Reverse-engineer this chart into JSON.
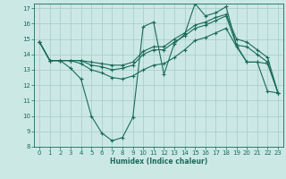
{
  "xlabel": "Humidex (Indice chaleur)",
  "ylabel": "",
  "background_color": "#cce8e5",
  "grid_color": "#aacfcc",
  "line_color": "#1a6b5a",
  "xlim": [
    -0.5,
    23.5
  ],
  "ylim": [
    8,
    17.3
  ],
  "yticks": [
    8,
    9,
    10,
    11,
    12,
    13,
    14,
    15,
    16,
    17
  ],
  "xticks": [
    0,
    1,
    2,
    3,
    4,
    5,
    6,
    7,
    8,
    9,
    10,
    11,
    12,
    13,
    14,
    15,
    16,
    17,
    18,
    19,
    20,
    21,
    22,
    23
  ],
  "series": [
    [
      14.8,
      13.6,
      13.6,
      13.1,
      12.4,
      10.0,
      8.9,
      8.4,
      8.6,
      9.9,
      15.8,
      16.1,
      12.7,
      14.7,
      15.3,
      17.3,
      16.5,
      16.7,
      17.1,
      14.6,
      13.5,
      13.5,
      11.6,
      11.5
    ],
    [
      14.8,
      13.6,
      13.6,
      13.6,
      13.4,
      13.0,
      12.8,
      12.5,
      12.4,
      12.6,
      13.0,
      13.3,
      13.4,
      13.8,
      14.3,
      14.9,
      15.1,
      15.4,
      15.7,
      14.5,
      13.5,
      13.5,
      13.4,
      11.5
    ],
    [
      14.8,
      13.6,
      13.6,
      13.6,
      13.6,
      13.3,
      13.2,
      13.0,
      13.1,
      13.3,
      14.0,
      14.3,
      14.3,
      14.8,
      15.2,
      15.7,
      15.9,
      16.2,
      16.5,
      14.6,
      14.5,
      14.0,
      13.5,
      11.5
    ],
    [
      14.8,
      13.6,
      13.6,
      13.6,
      13.6,
      13.5,
      13.4,
      13.3,
      13.3,
      13.5,
      14.2,
      14.5,
      14.5,
      15.0,
      15.4,
      15.9,
      16.1,
      16.4,
      16.6,
      15.0,
      14.8,
      14.3,
      13.8,
      11.5
    ]
  ]
}
